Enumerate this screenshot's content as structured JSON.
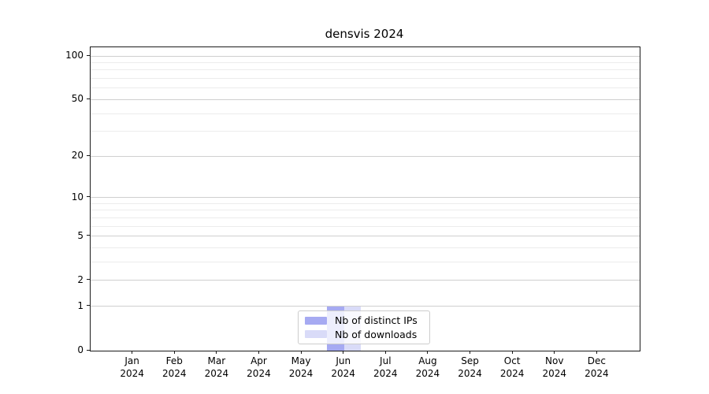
{
  "title": "densvis 2024",
  "chart_data": {
    "type": "bar",
    "title": "densvis 2024",
    "categories": [
      "Jan",
      "Feb",
      "Mar",
      "Apr",
      "May",
      "Jun",
      "Jul",
      "Aug",
      "Sep",
      "Oct",
      "Nov",
      "Dec"
    ],
    "x_tick_sublabel": "2024",
    "series": [
      {
        "name": "Nb of distinct IPs",
        "color": "#a6aaf2",
        "values": [
          0,
          0,
          0,
          0,
          0,
          1,
          0,
          0,
          0,
          0,
          0,
          0
        ]
      },
      {
        "name": "Nb of downloads",
        "color": "#d9dbf8",
        "values": [
          0,
          0,
          0,
          0,
          0,
          1,
          0,
          0,
          0,
          0,
          0,
          0
        ]
      }
    ],
    "xlabel": "",
    "ylabel": "",
    "y_scale": "log1p",
    "ylim": [
      0,
      113
    ],
    "y_major_ticks": [
      0,
      1,
      2,
      5,
      10,
      20,
      50,
      100
    ],
    "y_minor_ticks": [
      3,
      4,
      6,
      7,
      8,
      9,
      30,
      40,
      60,
      70,
      80,
      90
    ],
    "grid": true,
    "legend_position": "lower center"
  },
  "colors": {
    "major_grid": "#cfcfcf",
    "minor_grid": "#ececec",
    "spine": "#1a1a1a",
    "background": "#ffffff"
  }
}
